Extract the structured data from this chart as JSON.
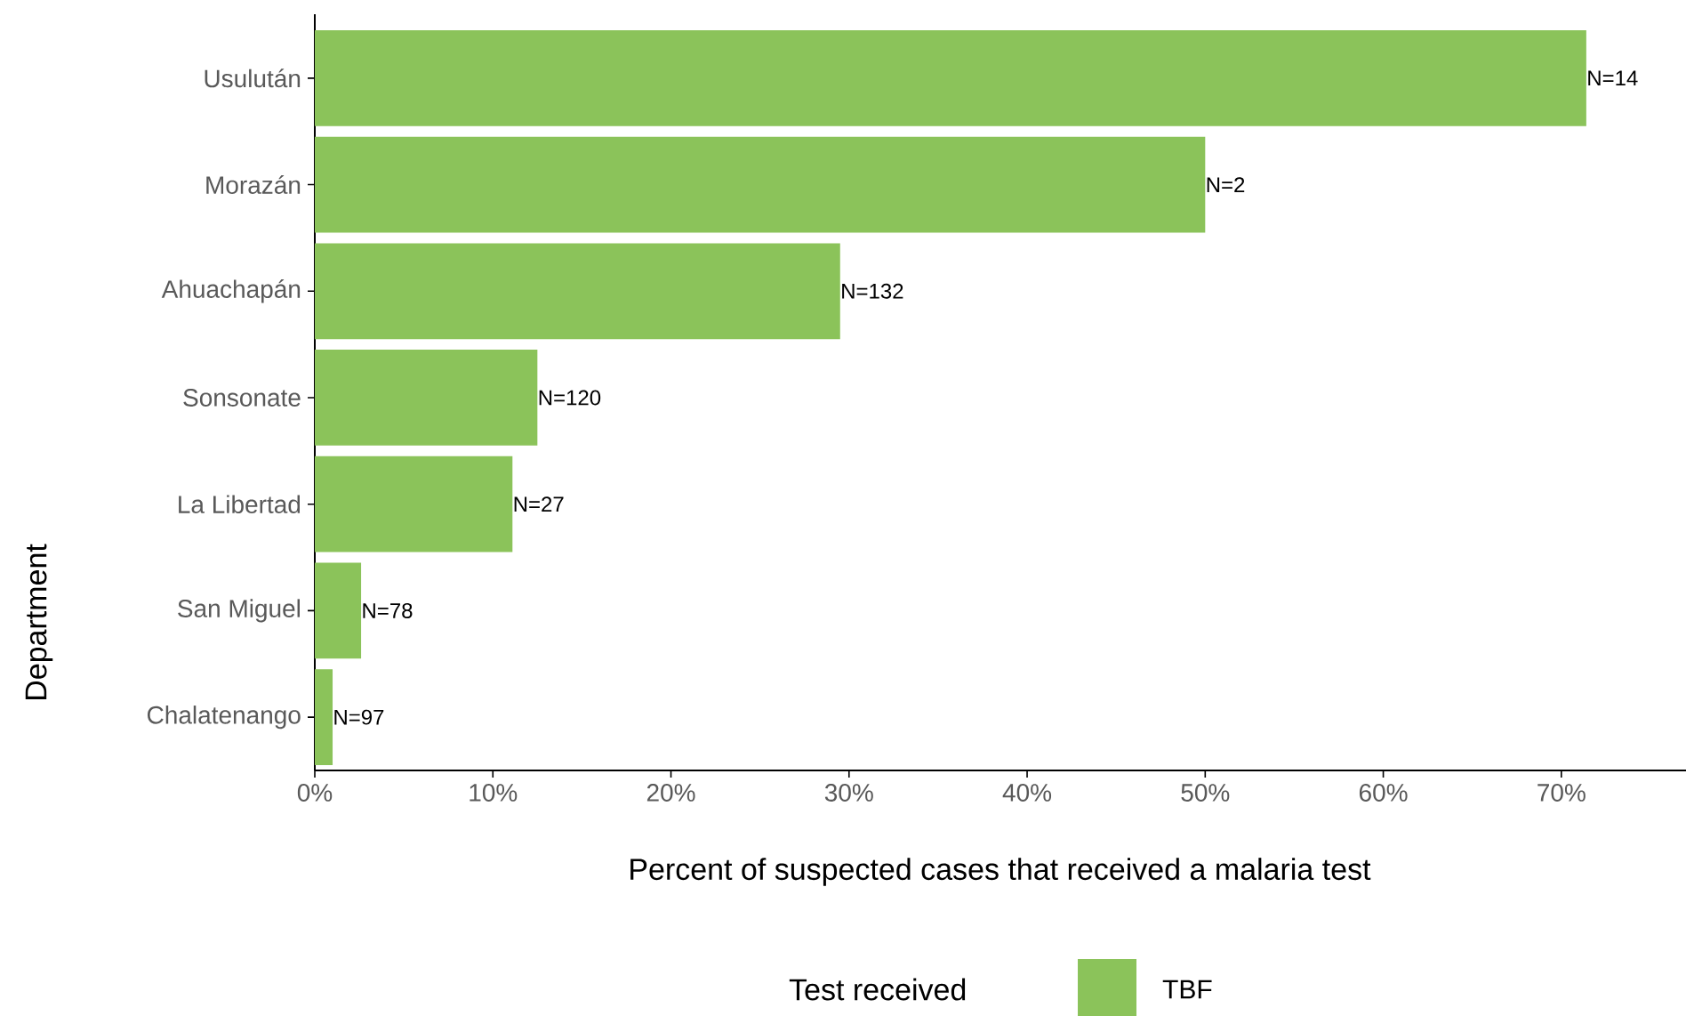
{
  "chart_data": {
    "type": "bar",
    "orientation": "horizontal",
    "xlabel": "Percent of suspected cases that received a malaria test",
    "ylabel": "Department",
    "legend_title": "Test received",
    "categories": [
      "Usulután",
      "Morazán",
      "Ahuachapán",
      "Sonsonate",
      "La Libertad",
      "San Miguel",
      "Chalatenango"
    ],
    "series": [
      {
        "name": "TBF",
        "color": "#8bc35a",
        "values": [
          71.4,
          50,
          29.5,
          12.5,
          11.1,
          2.6,
          1.0
        ]
      }
    ],
    "annotations": [
      {
        "text": "N=14",
        "x": 71.4,
        "y": "Usulután"
      },
      {
        "text": "N=2",
        "x": 50,
        "y": "Morazán"
      },
      {
        "text": "N=132",
        "x": 29.5,
        "y": "Ahuachapán"
      },
      {
        "text": "N=120",
        "x": 12.5,
        "y": "Sonsonate"
      },
      {
        "text": "N=27",
        "x": 11.1,
        "y": "La Libertad"
      },
      {
        "text": "N=78",
        "x": 2.6,
        "y": "San Miguel"
      },
      {
        "text": "N=97",
        "x": 1.0,
        "y": "Chalatenango"
      }
    ],
    "xlim": [
      0,
      77
    ],
    "xticks": [
      {
        "value": 0,
        "label": "0%"
      },
      {
        "value": 10,
        "label": "10%"
      },
      {
        "value": 20,
        "label": "20%"
      },
      {
        "value": 30,
        "label": "30%"
      },
      {
        "value": 40,
        "label": "40%"
      },
      {
        "value": 50,
        "label": "50%"
      },
      {
        "value": 60,
        "label": "60%"
      },
      {
        "value": 70,
        "label": "70%"
      }
    ],
    "legend": "bottom",
    "grid": false
  }
}
